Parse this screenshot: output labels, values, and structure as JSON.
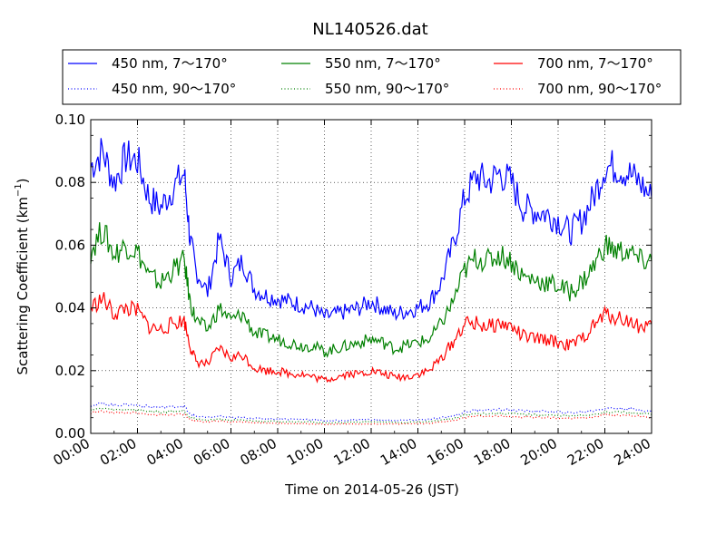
{
  "chart_data": {
    "type": "line",
    "title": "NL140526.dat",
    "xlabel": "Time on 2014-05-26 (JST)",
    "ylabel_main": "Scattering Coefficient (km",
    "ylabel_sup": "−1",
    "ylabel_close": ")",
    "xlim": [
      0,
      24
    ],
    "ylim": [
      0,
      0.1
    ],
    "x_unit": "hours",
    "grid": true,
    "legend_position": "top",
    "x_tick_labels": [
      "00:00",
      "02:00",
      "04:00",
      "06:00",
      "08:00",
      "10:00",
      "12:00",
      "14:00",
      "16:00",
      "18:00",
      "20:00",
      "22:00",
      "24:00"
    ],
    "y_tick_labels": [
      "0.00",
      "0.02",
      "0.04",
      "0.06",
      "0.08",
      "0.10"
    ],
    "x": [
      0,
      0.5,
      1,
      1.5,
      2,
      2.5,
      3,
      3.5,
      4,
      4.25,
      4.5,
      5,
      5.5,
      6,
      6.5,
      7,
      7.5,
      8,
      8.5,
      9,
      9.5,
      10,
      10.5,
      11,
      11.5,
      12,
      12.5,
      13,
      13.5,
      14,
      14.5,
      15,
      15.5,
      16,
      16.5,
      17,
      17.5,
      18,
      18.5,
      19,
      19.5,
      20,
      20.5,
      21,
      21.5,
      22,
      22.5,
      23,
      23.5,
      24
    ],
    "series": [
      {
        "name": "450 nm, 7～170°",
        "color": "#0000ff",
        "style": "solid",
        "values": [
          0.085,
          0.09,
          0.08,
          0.088,
          0.087,
          0.075,
          0.072,
          0.078,
          0.083,
          0.062,
          0.052,
          0.045,
          0.062,
          0.05,
          0.055,
          0.046,
          0.044,
          0.043,
          0.042,
          0.041,
          0.04,
          0.037,
          0.038,
          0.039,
          0.04,
          0.042,
          0.04,
          0.038,
          0.039,
          0.04,
          0.042,
          0.048,
          0.06,
          0.075,
          0.082,
          0.08,
          0.083,
          0.08,
          0.072,
          0.071,
          0.07,
          0.068,
          0.064,
          0.068,
          0.075,
          0.085,
          0.085,
          0.083,
          0.08,
          0.075
        ]
      },
      {
        "name": "550 nm, 7～170°",
        "color": "#008000",
        "style": "solid",
        "values": [
          0.058,
          0.065,
          0.057,
          0.06,
          0.058,
          0.05,
          0.048,
          0.052,
          0.055,
          0.042,
          0.036,
          0.033,
          0.04,
          0.036,
          0.038,
          0.032,
          0.031,
          0.03,
          0.029,
          0.028,
          0.028,
          0.026,
          0.027,
          0.028,
          0.029,
          0.03,
          0.029,
          0.027,
          0.028,
          0.029,
          0.03,
          0.035,
          0.042,
          0.052,
          0.056,
          0.055,
          0.057,
          0.055,
          0.05,
          0.049,
          0.048,
          0.047,
          0.045,
          0.048,
          0.053,
          0.06,
          0.058,
          0.058,
          0.055,
          0.055
        ]
      },
      {
        "name": "700 nm, 7～170°",
        "color": "#ff0000",
        "style": "solid",
        "values": [
          0.04,
          0.043,
          0.038,
          0.04,
          0.039,
          0.034,
          0.033,
          0.035,
          0.036,
          0.028,
          0.023,
          0.022,
          0.027,
          0.024,
          0.025,
          0.021,
          0.02,
          0.02,
          0.019,
          0.019,
          0.018,
          0.017,
          0.018,
          0.019,
          0.019,
          0.02,
          0.019,
          0.018,
          0.018,
          0.019,
          0.02,
          0.024,
          0.029,
          0.035,
          0.035,
          0.034,
          0.035,
          0.034,
          0.031,
          0.03,
          0.03,
          0.029,
          0.028,
          0.03,
          0.034,
          0.038,
          0.037,
          0.036,
          0.034,
          0.035
        ]
      },
      {
        "name": "450 nm, 90～170°",
        "color": "#0000ff",
        "style": "dotted",
        "values": [
          0.009,
          0.0095,
          0.009,
          0.0092,
          0.009,
          0.0085,
          0.0082,
          0.0085,
          0.0087,
          0.006,
          0.0055,
          0.005,
          0.0055,
          0.005,
          0.005,
          0.0048,
          0.0047,
          0.0046,
          0.0045,
          0.0045,
          0.0044,
          0.004,
          0.0041,
          0.0042,
          0.0043,
          0.0044,
          0.0043,
          0.0042,
          0.0042,
          0.0043,
          0.0045,
          0.005,
          0.0055,
          0.0068,
          0.0075,
          0.0075,
          0.0076,
          0.0075,
          0.0072,
          0.0071,
          0.007,
          0.0068,
          0.0066,
          0.0068,
          0.0072,
          0.008,
          0.008,
          0.0078,
          0.0075,
          0.007
        ]
      },
      {
        "name": "550 nm, 90～170°",
        "color": "#008000",
        "style": "dotted",
        "values": [
          0.0075,
          0.008,
          0.0075,
          0.0077,
          0.0075,
          0.007,
          0.0068,
          0.007,
          0.0072,
          0.005,
          0.0046,
          0.0042,
          0.0046,
          0.0042,
          0.0042,
          0.004,
          0.0039,
          0.0038,
          0.0037,
          0.0037,
          0.0036,
          0.0033,
          0.0034,
          0.0035,
          0.0036,
          0.0037,
          0.0036,
          0.0035,
          0.0035,
          0.0036,
          0.0038,
          0.0042,
          0.0047,
          0.0058,
          0.0063,
          0.0063,
          0.0064,
          0.0063,
          0.006,
          0.0059,
          0.0058,
          0.0057,
          0.0055,
          0.0057,
          0.006,
          0.0068,
          0.0068,
          0.0066,
          0.0063,
          0.006
        ]
      },
      {
        "name": "700 nm, 90～170°",
        "color": "#ff0000",
        "style": "dotted",
        "values": [
          0.0065,
          0.007,
          0.0065,
          0.0067,
          0.0065,
          0.006,
          0.0058,
          0.006,
          0.0062,
          0.0043,
          0.004,
          0.0036,
          0.004,
          0.0036,
          0.0036,
          0.0034,
          0.0033,
          0.0032,
          0.0031,
          0.0031,
          0.003,
          0.0028,
          0.0029,
          0.003,
          0.003,
          0.0031,
          0.003,
          0.003,
          0.003,
          0.0031,
          0.0032,
          0.0036,
          0.004,
          0.005,
          0.0054,
          0.0054,
          0.0055,
          0.0054,
          0.0052,
          0.0051,
          0.005,
          0.0049,
          0.0047,
          0.0049,
          0.0052,
          0.006,
          0.0059,
          0.0057,
          0.0054,
          0.005
        ]
      }
    ]
  }
}
